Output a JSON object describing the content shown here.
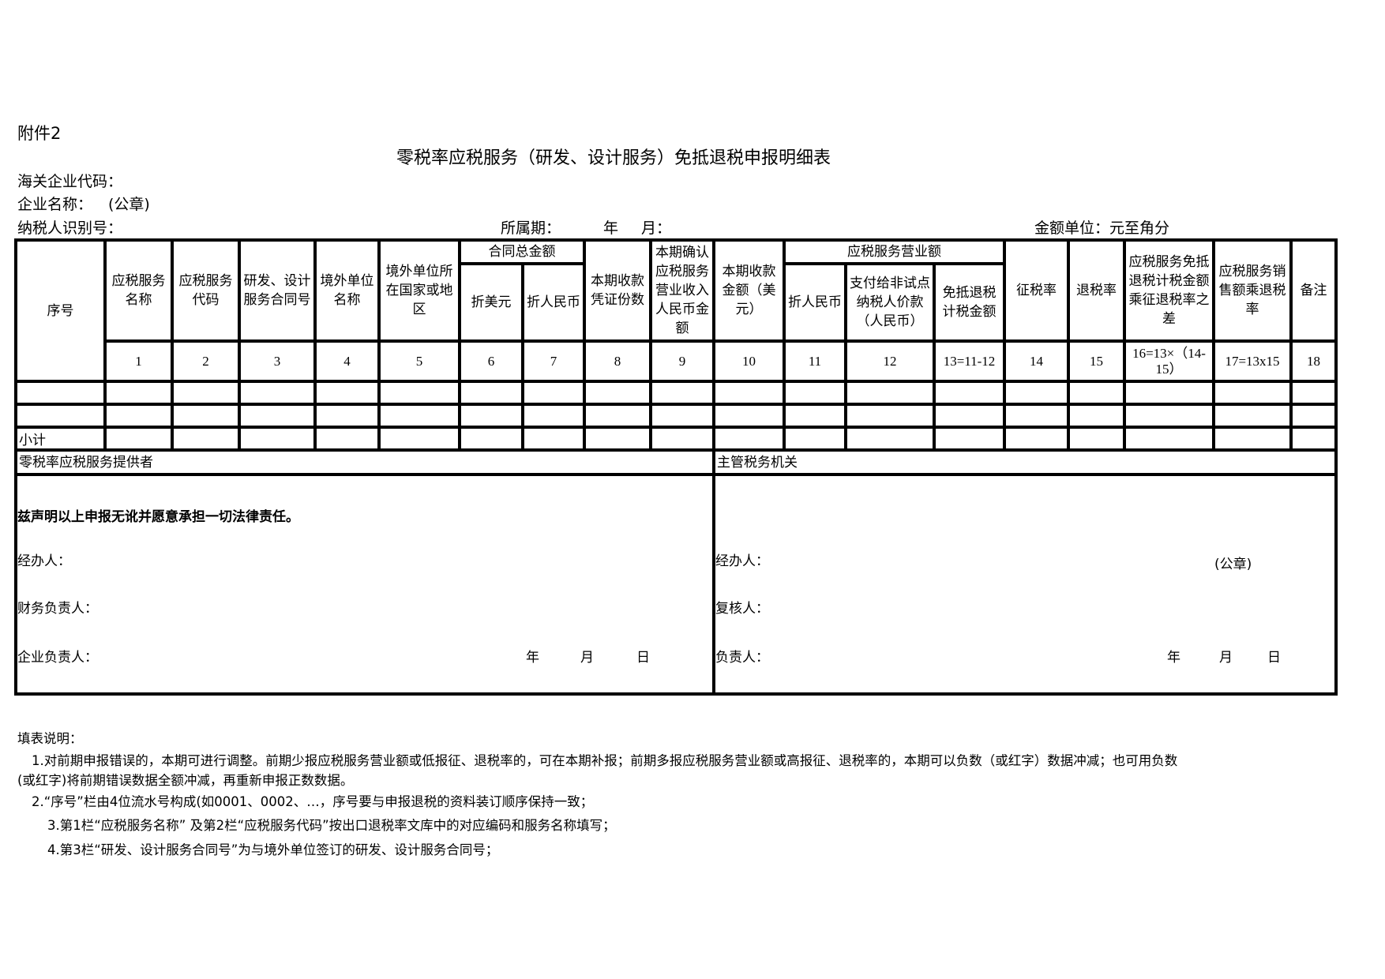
{
  "attachment": "附件2",
  "title": "零税率应税服务（研发、设计服务）免抵退税申报明细表",
  "meta": {
    "customs_code_label": "海关企业代码：",
    "company_name_label": "企业名称：",
    "company_seal": "(公章)",
    "taxpayer_id_label": "纳税人识别号：",
    "period_label": "所属期：",
    "year": "年",
    "month": "月：",
    "unit_label": "金额单位：元至角分"
  },
  "table": {
    "headers": {
      "seq": "序号",
      "service_name": "应税服务名称",
      "service_code": "应税服务代码",
      "contract_no": "研发、设计服务合同号",
      "foreign_unit": "境外单位名称",
      "foreign_country": "境外单位所在国家或地区",
      "contract_total": "合同总金额",
      "usd": "折美元",
      "rmb": "折人民币",
      "voucher_count": "本期收款凭证份数",
      "confirmed_revenue": "本期确认应税服务营业收入人民币金额",
      "received_usd": "本期收款金额（美元）",
      "service_revenue": "应税服务营业额",
      "revenue_rmb": "折人民币",
      "paid_nonpilot": "支付给非试点纳税人价款（人民币）",
      "taxable_amount": "免抵退税计税金额",
      "levy_rate": "征税率",
      "refund_rate": "退税率",
      "rate_diff": "应税服务免抵退税计税金额乘征退税率之差",
      "sales_refund": "应税服务销售额乘退税率",
      "remarks": "备注"
    },
    "column_numbers": [
      "1",
      "2",
      "3",
      "4",
      "5",
      "6",
      "7",
      "8",
      "9",
      "10",
      "11",
      "12",
      "13=11-12",
      "14",
      "15",
      "16=13×（14-15）",
      "17=13x15",
      "18"
    ],
    "subtotal_label": "小计",
    "provider_label": "零税率应税服务提供者",
    "authority_label": "主管税务机关"
  },
  "provider": {
    "declaration": "兹声明以上申报无讹并愿意承担一切法律责任。",
    "handler": "经办人：",
    "finance_head": "财务负责人：",
    "company_head": "企业负责人：",
    "year": "年",
    "month": "月",
    "day": "日"
  },
  "authority": {
    "handler": "经办人：",
    "seal": "(公章)",
    "reviewer": "复核人：",
    "head": "负责人：",
    "year": "年",
    "month": "月",
    "day": "日"
  },
  "notes": {
    "heading": "填表说明：",
    "line1a": "1.对前期申报错误的，本期可进行调整。前期少报应税服务营业额或低报征、退税率的，可在本期补报；前期多报应税服务营业额或高报征、退税率的，本期可以负数（或红字）数据冲减；也可用负数",
    "line1b": "(或红字)将前期错误数据全额冲减，再重新申报正数数据。",
    "line2": "2.“序号”栏由4位流水号构成(如0001、0002、…，序号要与申报退税的资料装订顺序保持一致；",
    "line3": "3.第1栏“应税服务名称” 及第2栏“应税服务代码”按出口退税率文库中的对应编码和服务名称填写；",
    "line4": "4.第3栏“研发、设计服务合同号”为与境外单位签订的研发、设计服务合同号；"
  }
}
